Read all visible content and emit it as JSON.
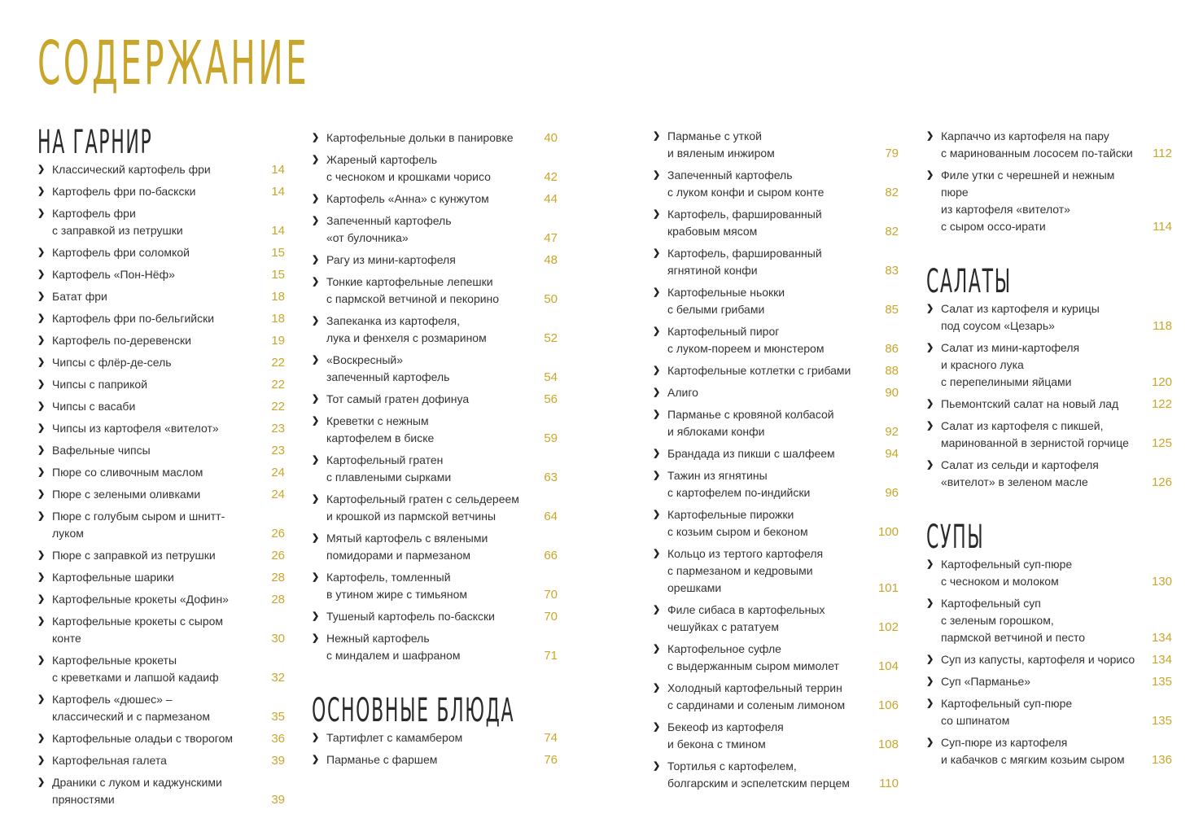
{
  "title": "СОДЕРЖАНИЕ",
  "accent_color": "#c9a52a",
  "bullet_icon": "chevron-right-icon",
  "sections": [
    {
      "id": "garnish",
      "heading": "НА ГАРНИР",
      "entries": [
        {
          "text": "Классический картофель фри",
          "page": "14"
        },
        {
          "text": "Картофель фри по-баскски",
          "page": "14"
        },
        {
          "text": "Картофель фри\nс заправкой из петрушки",
          "page": "14"
        },
        {
          "text": "Картофель фри соломкой",
          "page": "15"
        },
        {
          "text": "Картофель «Пон-Нёф»",
          "page": "15"
        },
        {
          "text": "Батат фри",
          "page": "18"
        },
        {
          "text": "Картофель фри по-бельгийски",
          "page": "18"
        },
        {
          "text": "Картофель по-деревенски",
          "page": "19"
        },
        {
          "text": "Чипсы с флёр-де-сель",
          "page": "22"
        },
        {
          "text": "Чипсы с паприкой",
          "page": "22"
        },
        {
          "text": "Чипсы с васаби",
          "page": "22"
        },
        {
          "text": "Чипсы из картофеля «вителот»",
          "page": "23"
        },
        {
          "text": "Вафельные чипсы",
          "page": "23"
        },
        {
          "text": "Пюре со сливочным маслом",
          "page": "24"
        },
        {
          "text": "Пюре с зелеными оливками",
          "page": "24"
        },
        {
          "text": "Пюре с голубым сыром и шнитт-луком",
          "page": "26"
        },
        {
          "text": "Пюре с заправкой из петрушки",
          "page": "26"
        },
        {
          "text": "Картофельные шарики",
          "page": "28"
        },
        {
          "text": "Картофельные крокеты «Дофин»",
          "page": "28"
        },
        {
          "text": "Картофельные крокеты с сыром конте",
          "page": "30"
        },
        {
          "text": "Картофельные крокеты\nс креветками и лапшой кадаиф",
          "page": "32"
        },
        {
          "text": "Картофель «дюшес» –\nклассический и с пармезаном",
          "page": "35"
        },
        {
          "text": "Картофельные оладьи с творогом",
          "page": "36"
        },
        {
          "text": "Картофельная галета",
          "page": "39"
        },
        {
          "text": "Драники с луком и каджунскими\nпряностями",
          "page": "39"
        }
      ]
    },
    {
      "id": "garnish-cont",
      "heading": "",
      "entries": [
        {
          "text": "Картофельные дольки в панировке",
          "page": "40"
        },
        {
          "text": "Жареный картофель\nс чесноком и крошками чорисо",
          "page": "42"
        },
        {
          "text": "Картофель «Анна» с кунжутом",
          "page": "44"
        },
        {
          "text": "Запеченный картофель\n«от булочника»",
          "page": "47"
        },
        {
          "text": "Рагу из мини-картофеля",
          "page": "48"
        },
        {
          "text": "Тонкие картофельные лепешки\nс пармской ветчиной и пекорино",
          "page": "50"
        },
        {
          "text": "Запеканка из картофеля,\nлука и фенхеля с розмарином",
          "page": "52"
        },
        {
          "text": "«Воскресный»\nзапеченный картофель",
          "page": "54"
        },
        {
          "text": "Тот самый гратен дофинуа",
          "page": "56"
        },
        {
          "text": "Креветки с нежным\nкартофелем в биске",
          "page": "59"
        },
        {
          "text": "Картофельный гратен\nс плавлеными сырками",
          "page": "63"
        },
        {
          "text": "Картофельный гратен с сельдереем\nи крошкой из пармской ветчины",
          "page": "64"
        },
        {
          "text": "Мятый картофель с вялеными\nпомидорами и пармезаном",
          "page": "66"
        },
        {
          "text": "Картофель, томленный\nв утином жире с тимьяном",
          "page": "70"
        },
        {
          "text": "Тушеный картофель по-баскски",
          "page": "70"
        },
        {
          "text": "Нежный картофель\nс миндалем и шафраном",
          "page": "71"
        }
      ]
    },
    {
      "id": "main",
      "heading": "ОСНОВНЫЕ БЛЮДА",
      "entries": [
        {
          "text": "Тартифлет с камамбером",
          "page": "74"
        },
        {
          "text": "Парманье с фаршем",
          "page": "76"
        }
      ]
    },
    {
      "id": "main-cont",
      "heading": "",
      "entries": [
        {
          "text": "Парманье с уткой\nи вяленым инжиром",
          "page": "79"
        },
        {
          "text": "Запеченный картофель\nс луком конфи и сыром конте",
          "page": "82"
        },
        {
          "text": "Картофель, фаршированный\nкрабовым мясом",
          "page": "82"
        },
        {
          "text": "Картофель, фаршированный\nягнятиной конфи",
          "page": "83"
        },
        {
          "text": "Картофельные ньокки\nс белыми грибами",
          "page": "85"
        },
        {
          "text": "Картофельный пирог\nс луком-пореем и мюнстером",
          "page": "86"
        },
        {
          "text": "Картофельные котлетки с грибами",
          "page": "88"
        },
        {
          "text": "Алиго",
          "page": "90"
        },
        {
          "text": "Парманье с кровяной колбасой\nи яблоками конфи",
          "page": "92"
        },
        {
          "text": "Брандада из пикши с шалфеем",
          "page": "94"
        },
        {
          "text": "Тажин из ягнятины\nс картофелем по-индийски",
          "page": "96"
        },
        {
          "text": "Картофельные пирожки\nс козьим сыром и беконом",
          "page": "100"
        },
        {
          "text": "Кольцо из тертого картофеля\nс пармезаном и кедровыми орешками",
          "page": "101"
        },
        {
          "text": "Филе сибаса в картофельных\nчешуйках с рататуем",
          "page": "102"
        },
        {
          "text": "Картофельное суфле\nс выдержанным сыром мимолет",
          "page": "104"
        },
        {
          "text": "Холодный картофельный террин\nс сардинами и соленым лимоном",
          "page": "106"
        },
        {
          "text": "Бекеоф из картофеля\nи бекона с тмином",
          "page": "108"
        },
        {
          "text": "Тортилья с картофелем,\nболгарским и эспелетским перцем",
          "page": "110"
        }
      ]
    },
    {
      "id": "main-cont2",
      "heading": "",
      "entries": [
        {
          "text": "Карпаччо из картофеля на пару\nс маринованным лососем по-тайски",
          "page": "112"
        },
        {
          "text": "Филе утки с черешней и нежным пюре\nиз картофеля «вителот»\nс сыром оссо-ирати",
          "page": "114"
        }
      ]
    },
    {
      "id": "salads",
      "heading": "САЛАТЫ",
      "entries": [
        {
          "text": "Салат из картофеля и курицы\nпод соусом «Цезарь»",
          "page": "118"
        },
        {
          "text": "Салат из мини-картофеля\nи красного лука\nс перепелиными яйцами",
          "page": "120"
        },
        {
          "text": "Пьемонтский салат на новый лад",
          "page": "122"
        },
        {
          "text": "Салат из картофеля с пикшей,\nмаринованной в зернистой горчице",
          "page": "125"
        },
        {
          "text": "Салат из сельди и картофеля\n«вителот» в зеленом масле",
          "page": "126"
        }
      ]
    },
    {
      "id": "soups",
      "heading": "СУПЫ",
      "entries": [
        {
          "text": "Картофельный суп-пюре\nс чесноком и молоком",
          "page": "130"
        },
        {
          "text": "Картофельный суп\nс зеленым горошком,\nпармской ветчиной и песто",
          "page": "134"
        },
        {
          "text": "Суп из капусты, картофеля и чорисо",
          "page": "134"
        },
        {
          "text": "Суп «Парманье»",
          "page": "135"
        },
        {
          "text": "Картофельный суп-пюре\nсо шпинатом",
          "page": "135"
        },
        {
          "text": "Суп-пюре из картофеля\nи кабачков с мягким козьим сыром",
          "page": "136"
        }
      ]
    }
  ]
}
